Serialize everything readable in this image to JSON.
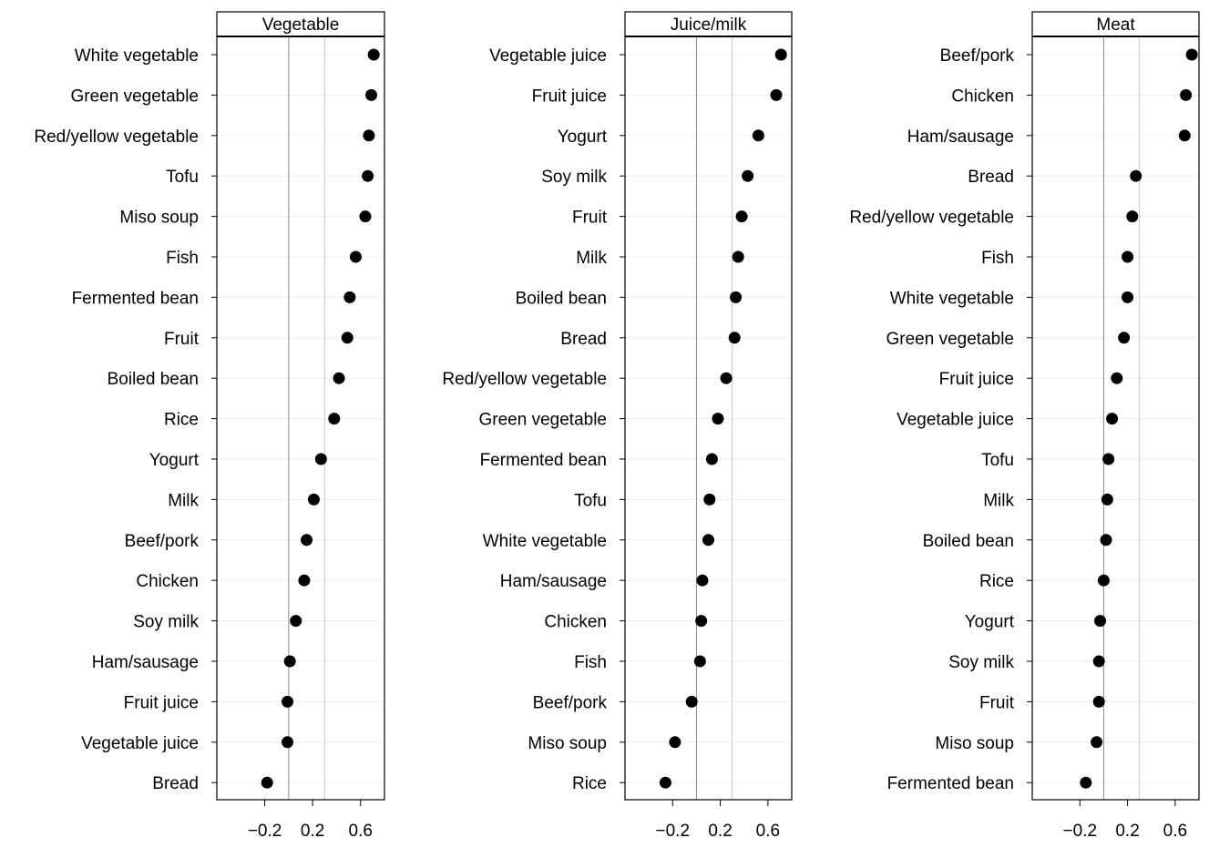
{
  "chart_data": [
    {
      "type": "dot",
      "title": "Vegetable",
      "xticks": [
        "-0.2",
        "0.2",
        "0.6"
      ],
      "xlim": [
        -0.6,
        0.8
      ],
      "refline": 0,
      "xgrid": 0.3,
      "points": [
        {
          "label": "White vegetable",
          "value": 0.71
        },
        {
          "label": "Green vegetable",
          "value": 0.69
        },
        {
          "label": "Red/yellow vegetable",
          "value": 0.67
        },
        {
          "label": "Tofu",
          "value": 0.66
        },
        {
          "label": "Miso soup",
          "value": 0.64
        },
        {
          "label": "Fish",
          "value": 0.56
        },
        {
          "label": "Fermented bean",
          "value": 0.51
        },
        {
          "label": "Fruit",
          "value": 0.49
        },
        {
          "label": "Boiled bean",
          "value": 0.42
        },
        {
          "label": "Rice",
          "value": 0.38
        },
        {
          "label": "Yogurt",
          "value": 0.27
        },
        {
          "label": "Milk",
          "value": 0.21
        },
        {
          "label": "Beef/pork",
          "value": 0.15
        },
        {
          "label": "Chicken",
          "value": 0.13
        },
        {
          "label": "Soy milk",
          "value": 0.06
        },
        {
          "label": "Ham/sausage",
          "value": 0.01
        },
        {
          "label": "Fruit juice",
          "value": -0.01
        },
        {
          "label": "Vegetable juice",
          "value": -0.01
        },
        {
          "label": "Bread",
          "value": -0.18
        }
      ]
    },
    {
      "type": "dot",
      "title": "Juice/milk",
      "xticks": [
        "-0.2",
        "0.2",
        "0.6"
      ],
      "xlim": [
        -0.6,
        0.8
      ],
      "refline": 0,
      "xgrid": 0.3,
      "points": [
        {
          "label": "Vegetable juice",
          "value": 0.71
        },
        {
          "label": "Fruit juice",
          "value": 0.67
        },
        {
          "label": "Yogurt",
          "value": 0.52
        },
        {
          "label": "Soy milk",
          "value": 0.43
        },
        {
          "label": "Fruit",
          "value": 0.38
        },
        {
          "label": "Milk",
          "value": 0.35
        },
        {
          "label": "Boiled bean",
          "value": 0.33
        },
        {
          "label": "Bread",
          "value": 0.32
        },
        {
          "label": "Red/yellow vegetable",
          "value": 0.25
        },
        {
          "label": "Green vegetable",
          "value": 0.18
        },
        {
          "label": "Fermented bean",
          "value": 0.13
        },
        {
          "label": "Tofu",
          "value": 0.11
        },
        {
          "label": "White vegetable",
          "value": 0.1
        },
        {
          "label": "Ham/sausage",
          "value": 0.05
        },
        {
          "label": "Chicken",
          "value": 0.04
        },
        {
          "label": "Fish",
          "value": 0.03
        },
        {
          "label": "Beef/pork",
          "value": -0.04
        },
        {
          "label": "Miso soup",
          "value": -0.18
        },
        {
          "label": "Rice",
          "value": -0.26
        }
      ]
    },
    {
      "type": "dot",
      "title": "Meat",
      "xticks": [
        "-0.2",
        "0.2",
        "0.6"
      ],
      "xlim": [
        -0.6,
        0.8
      ],
      "refline": 0,
      "xgrid": 0.3,
      "points": [
        {
          "label": "Beef/pork",
          "value": 0.74
        },
        {
          "label": "Chicken",
          "value": 0.69
        },
        {
          "label": "Ham/sausage",
          "value": 0.68
        },
        {
          "label": "Bread",
          "value": 0.27
        },
        {
          "label": "Red/yellow vegetable",
          "value": 0.24
        },
        {
          "label": "Fish",
          "value": 0.2
        },
        {
          "label": "White vegetable",
          "value": 0.2
        },
        {
          "label": "Green vegetable",
          "value": 0.17
        },
        {
          "label": "Fruit juice",
          "value": 0.11
        },
        {
          "label": "Vegetable juice",
          "value": 0.07
        },
        {
          "label": "Tofu",
          "value": 0.04
        },
        {
          "label": "Milk",
          "value": 0.03
        },
        {
          "label": "Boiled bean",
          "value": 0.02
        },
        {
          "label": "Rice",
          "value": 0.0
        },
        {
          "label": "Yogurt",
          "value": -0.03
        },
        {
          "label": "Soy milk",
          "value": -0.04
        },
        {
          "label": "Fruit",
          "value": -0.04
        },
        {
          "label": "Miso soup",
          "value": -0.06
        },
        {
          "label": "Fermented bean",
          "value": -0.15
        }
      ]
    }
  ]
}
